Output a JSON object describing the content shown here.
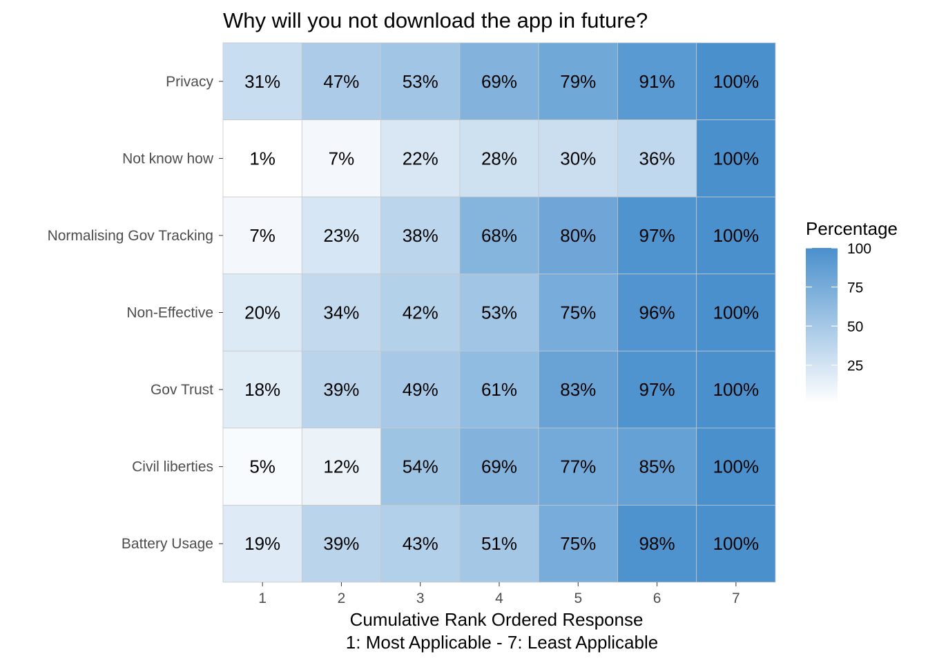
{
  "chart_data": {
    "type": "heatmap",
    "title": "Why will you not download the app in future?",
    "xlabel_lines": [
      "Cumulative Rank Ordered Response",
      "1: Most Applicable - 7: Least Applicable"
    ],
    "ylabel": "",
    "x_categories": [
      "1",
      "2",
      "3",
      "4",
      "5",
      "6",
      "7"
    ],
    "y_categories": [
      "Privacy",
      "Not know how",
      "Normalising Gov Tracking",
      "Non-Effective",
      "Gov Trust",
      "Civil liberties",
      "Battery Usage"
    ],
    "values": [
      [
        31,
        47,
        53,
        69,
        79,
        91,
        100
      ],
      [
        1,
        7,
        22,
        28,
        30,
        36,
        100
      ],
      [
        7,
        23,
        38,
        68,
        80,
        97,
        100
      ],
      [
        20,
        34,
        42,
        53,
        75,
        96,
        100
      ],
      [
        18,
        39,
        49,
        61,
        83,
        97,
        100
      ],
      [
        5,
        12,
        54,
        69,
        77,
        85,
        100
      ],
      [
        19,
        39,
        43,
        51,
        75,
        98,
        100
      ]
    ],
    "value_suffix": "%",
    "color_scale": {
      "low_color": "#ffffff",
      "high_color": "#4a90cd",
      "domain": [
        1,
        100
      ]
    },
    "legend": {
      "title": "Percentage",
      "ticks": [
        25,
        50,
        75,
        100
      ],
      "placement": "right"
    }
  }
}
